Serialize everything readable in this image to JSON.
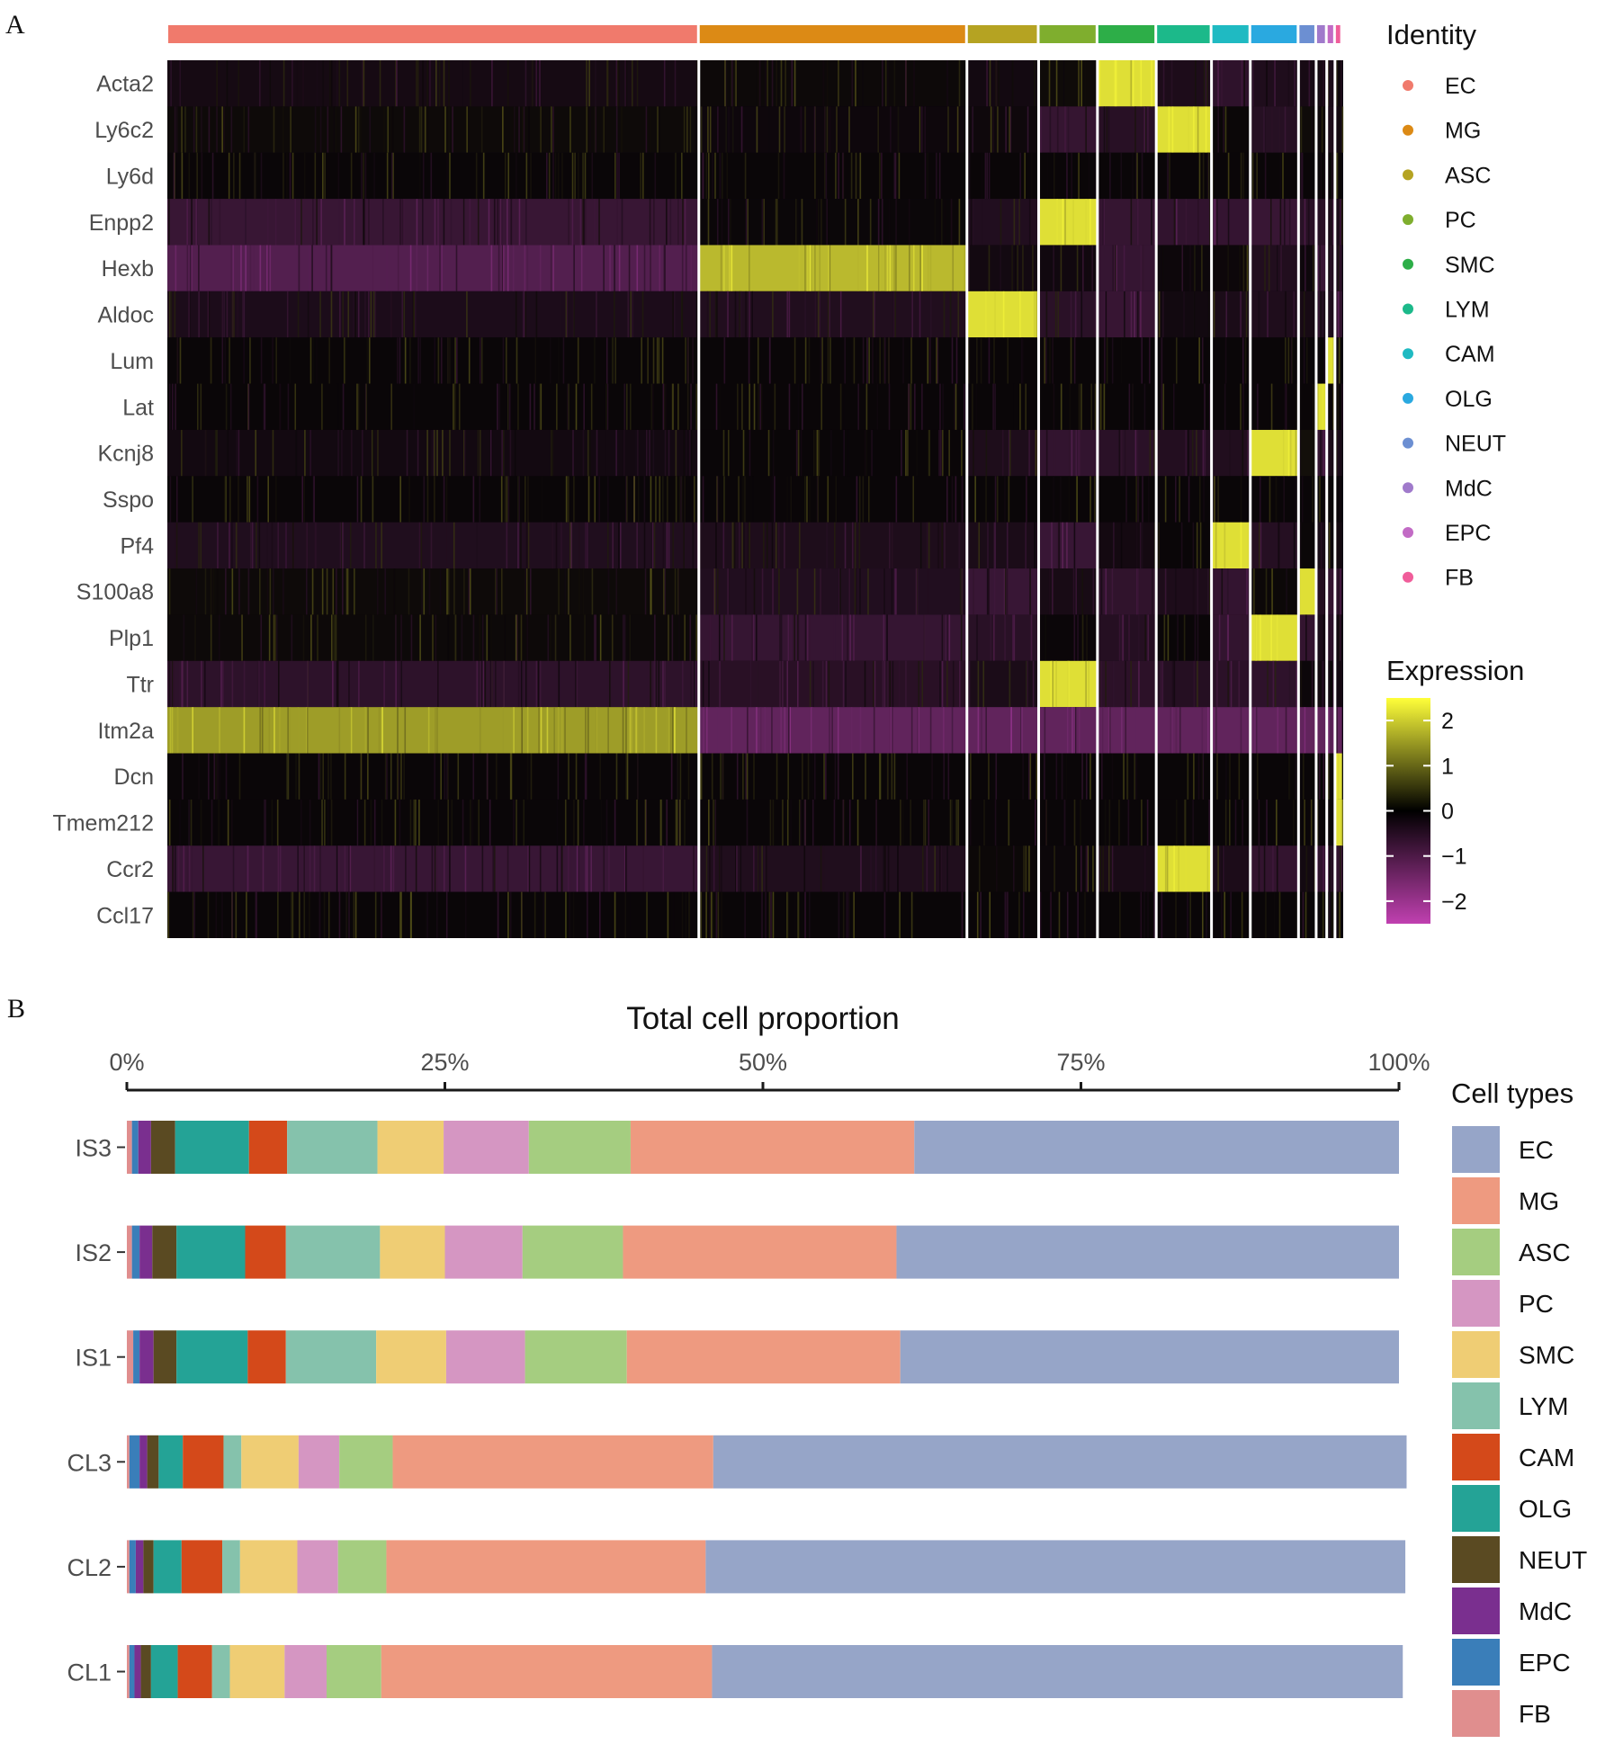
{
  "panels": {
    "a_letter": "A",
    "b_letter": "B"
  },
  "chart_data": [
    {
      "type": "heatmap",
      "panel": "A",
      "genes": [
        "Acta2",
        "Ly6c2",
        "Ly6d",
        "Enpp2",
        "Hexb",
        "Aldoc",
        "Lum",
        "Lat",
        "Kcnj8",
        "Sspo",
        "Pf4",
        "S100a8",
        "Plp1",
        "Ttr",
        "Itm2a",
        "Dcn",
        "Tmem212",
        "Ccr2",
        "Ccl17"
      ],
      "identity": {
        "title": "Identity",
        "groups": [
          {
            "name": "EC",
            "color": "#F07A6C",
            "proportion": 0.452
          },
          {
            "name": "MG",
            "color": "#DC8A15",
            "proportion": 0.228
          },
          {
            "name": "ASC",
            "color": "#B5A322",
            "proportion": 0.061
          },
          {
            "name": "PC",
            "color": "#7FAE2E",
            "proportion": 0.05
          },
          {
            "name": "SMC",
            "color": "#2DAE48",
            "proportion": 0.05
          },
          {
            "name": "LYM",
            "color": "#1CB98A",
            "proportion": 0.047
          },
          {
            "name": "CAM",
            "color": "#1FBAC2",
            "proportion": 0.033
          },
          {
            "name": "OLG",
            "color": "#2AA9E0",
            "proportion": 0.041
          },
          {
            "name": "NEUT",
            "color": "#6C8FD2",
            "proportion": 0.015
          },
          {
            "name": "MdC",
            "color": "#A07ACB",
            "proportion": 0.009
          },
          {
            "name": "EPC",
            "color": "#C26BC5",
            "proportion": 0.007
          },
          {
            "name": "FB",
            "color": "#F05D9A",
            "proportion": 0.006
          }
        ]
      },
      "marker_map": {
        "Acta2": "SMC",
        "Ly6c2": "LYM",
        "Enpp2": "PC",
        "Hexb": "MG",
        "Aldoc": "ASC",
        "Lum": "EPC",
        "Lat": "MdC",
        "Kcnj8": "OLG",
        "Pf4": "CAM",
        "S100a8": "NEUT",
        "Plp1": "OLG",
        "Ttr": "PC",
        "Itm2a": "EC",
        "Dcn": "FB",
        "Tmem212": "FB",
        "Ccr2": "LYM"
      },
      "expression_legend": {
        "title": "Expression",
        "ticks": [
          "2",
          "1",
          "0",
          "−1",
          "−2"
        ],
        "range": [
          -2.5,
          2.5
        ],
        "colors": [
          "#FFFF33",
          "#000000",
          "#FF00FF"
        ]
      }
    },
    {
      "type": "bar",
      "panel": "B",
      "orientation": "horizontal-stacked",
      "title": "Total cell proportion",
      "xlim": [
        0,
        100
      ],
      "xticks": [
        "0%",
        "25%",
        "50%",
        "75%",
        "100%"
      ],
      "categories": [
        "IS3",
        "IS2",
        "IS1",
        "CL3",
        "CL2",
        "CL1"
      ],
      "legend_title": "Cell types",
      "series": [
        {
          "name": "FB",
          "color": "#E08E8E",
          "values": [
            0.4,
            0.4,
            0.5,
            0.2,
            0.2,
            0.2
          ]
        },
        {
          "name": "EPC",
          "color": "#3A7EB9",
          "values": [
            0.5,
            0.6,
            0.5,
            0.8,
            0.5,
            0.4
          ]
        },
        {
          "name": "MdC",
          "color": "#7A2F8F",
          "values": [
            1.0,
            1.0,
            1.1,
            0.6,
            0.6,
            0.5
          ]
        },
        {
          "name": "NEUT",
          "color": "#5A4A22",
          "values": [
            1.9,
            1.9,
            1.8,
            0.9,
            0.8,
            0.8
          ]
        },
        {
          "name": "OLG",
          "color": "#24A396",
          "values": [
            5.8,
            5.4,
            5.6,
            1.9,
            2.2,
            2.1
          ]
        },
        {
          "name": "CAM",
          "color": "#D4491A",
          "values": [
            3.0,
            3.2,
            3.0,
            3.2,
            3.2,
            2.7
          ]
        },
        {
          "name": "LYM",
          "color": "#85C2AC",
          "values": [
            7.1,
            7.4,
            7.1,
            1.4,
            1.4,
            1.4
          ]
        },
        {
          "name": "SMC",
          "color": "#EFCD74",
          "values": [
            5.2,
            5.1,
            5.5,
            4.5,
            4.5,
            4.3
          ]
        },
        {
          "name": "PC",
          "color": "#D596C2",
          "values": [
            6.7,
            6.1,
            6.2,
            3.2,
            3.2,
            3.3
          ]
        },
        {
          "name": "ASC",
          "color": "#A5CD80",
          "values": [
            8.0,
            7.9,
            8.0,
            4.2,
            3.8,
            4.3
          ]
        },
        {
          "name": "MG",
          "color": "#EE9A80",
          "values": [
            22.3,
            21.5,
            21.5,
            25.2,
            25.1,
            26.0
          ]
        },
        {
          "name": "EC",
          "color": "#96A5C8",
          "values": [
            38.1,
            39.5,
            39.2,
            54.5,
            55.0,
            54.3
          ]
        }
      ]
    }
  ]
}
